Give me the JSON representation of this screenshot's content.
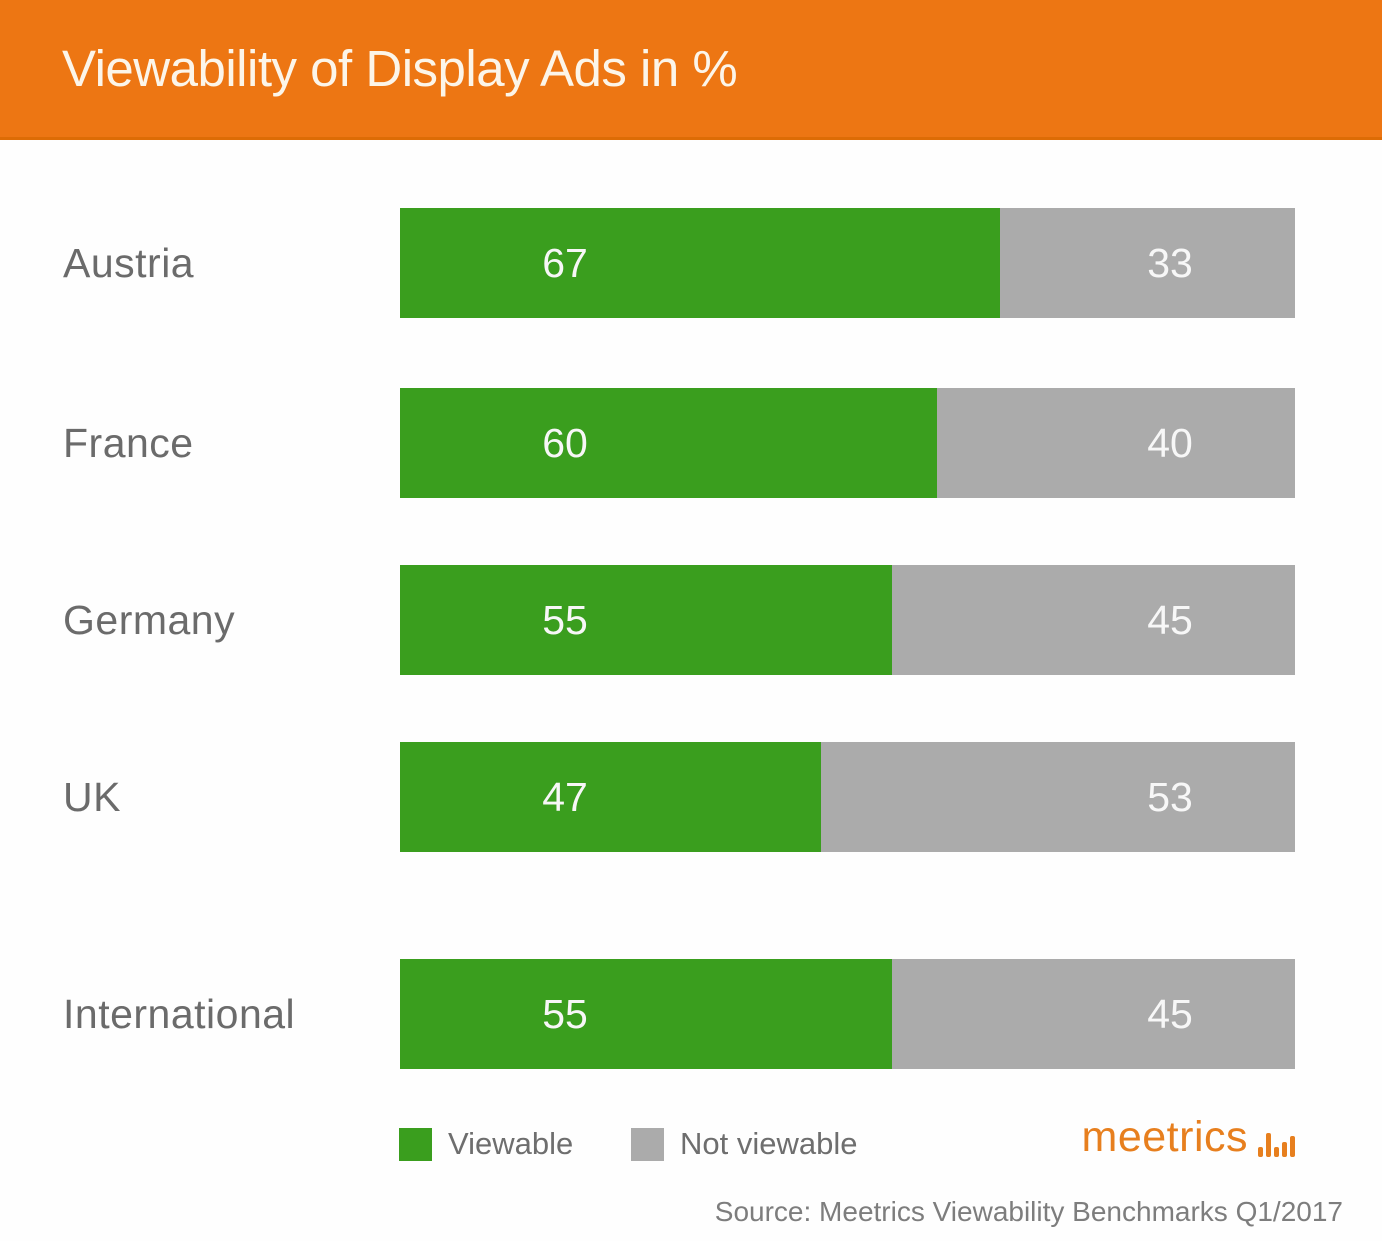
{
  "header": {
    "title": "Viewability of Display Ads in %",
    "bg_color": "#ED7613",
    "text_color": "#FCF5E9"
  },
  "chart_data": {
    "type": "bar",
    "orientation": "horizontal",
    "stacked": true,
    "title": "Viewability of Display Ads in %",
    "categories": [
      "Austria",
      "France",
      "Germany",
      "UK",
      "International"
    ],
    "series": [
      {
        "name": "Viewable",
        "color": "#3A9E1E",
        "values": [
          67,
          60,
          55,
          47,
          55
        ]
      },
      {
        "name": "Not viewable",
        "color": "#ABABAB",
        "values": [
          33,
          40,
          45,
          53,
          45
        ]
      }
    ],
    "xlim": [
      0,
      100
    ],
    "value_labels": "shown inside segments",
    "legend_position": "bottom",
    "grid": false
  },
  "legend": {
    "items": [
      {
        "label": "Viewable",
        "color": "#3A9E1E"
      },
      {
        "label": "Not viewable",
        "color": "#ABABAB"
      }
    ]
  },
  "footer": {
    "logo_text": "meetrics",
    "source": "Source: Meetrics Viewability Benchmarks Q1/2017"
  }
}
